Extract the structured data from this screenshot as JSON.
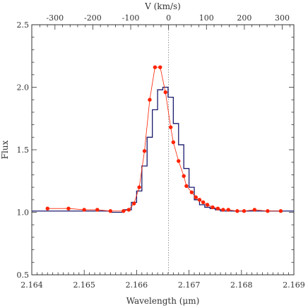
{
  "chart_data": {
    "type": "line",
    "title": "",
    "xlabel": "Wavelength (μm)",
    "ylabel": "Flux",
    "top_xlabel": "V (km/s)",
    "xlim": [
      2.164,
      2.169
    ],
    "ylim": [
      0.5,
      2.5
    ],
    "xticks": [
      2.164,
      2.165,
      2.166,
      2.167,
      2.168,
      2.169
    ],
    "xtick_labels": [
      "2.164",
      "2.165",
      "2.166",
      "2.167",
      "2.168",
      "2.169"
    ],
    "yticks": [
      0.5,
      1.0,
      1.5,
      2.0,
      2.5
    ],
    "ytick_labels": [
      "0.5",
      "1.0",
      "1.5",
      "2.0",
      "2.5"
    ],
    "top_ticks_kms": [
      -300,
      -200,
      -100,
      0,
      100,
      200,
      300
    ],
    "top_tick_labels": [
      "-300",
      "-200",
      "-100",
      "0",
      "100",
      "200",
      "300"
    ],
    "reference_line_x": 2.16661,
    "grid": false,
    "series": [
      {
        "style": "steps",
        "color": "#1a1a6e",
        "x": [
          2.1638,
          2.1655,
          2.16575,
          2.1659,
          2.166,
          2.1661,
          2.1662,
          2.1663,
          2.1664,
          2.1665,
          2.1666,
          2.1667,
          2.1668,
          2.1669,
          2.167,
          2.1671,
          2.1672,
          2.1673,
          2.1674,
          2.1675,
          2.1676,
          2.1678,
          2.168,
          2.169
        ],
        "y": [
          1.01,
          1.0,
          1.02,
          1.08,
          1.17,
          1.37,
          1.6,
          1.82,
          1.98,
          2.0,
          1.92,
          1.71,
          1.54,
          1.35,
          1.2,
          1.1,
          1.06,
          1.04,
          1.03,
          1.02,
          1.01,
          1.01,
          1.01,
          1.01
        ]
      },
      {
        "style": "line-markers",
        "color": "#ff2200",
        "x": [
          2.1643,
          2.1647,
          2.165,
          2.16525,
          2.1655,
          2.16575,
          2.16585,
          2.16595,
          2.16605,
          2.16615,
          2.16625,
          2.16635,
          2.16645,
          2.16655,
          2.16665,
          2.1667,
          2.1668,
          2.1669,
          2.16695,
          2.16705,
          2.16713,
          2.1672,
          2.16727,
          2.16735,
          2.16745,
          2.16755,
          2.16765,
          2.16775,
          2.16792,
          2.16805,
          2.16825,
          2.1685,
          2.16875
        ],
        "y": [
          1.03,
          1.03,
          1.02,
          1.02,
          1.01,
          1.01,
          1.02,
          1.07,
          1.2,
          1.49,
          1.9,
          2.16,
          2.16,
          1.96,
          1.68,
          1.56,
          1.41,
          1.29,
          1.21,
          1.16,
          1.12,
          1.1,
          1.08,
          1.06,
          1.04,
          1.03,
          1.02,
          1.02,
          1.01,
          1.01,
          1.02,
          1.01,
          1.01
        ]
      }
    ]
  }
}
